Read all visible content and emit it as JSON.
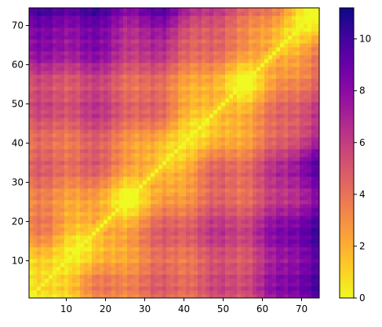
{
  "chart_data": {
    "type": "heatmap",
    "title": "",
    "xlabel": "",
    "ylabel": "",
    "n": 74,
    "x_range": [
      1,
      74
    ],
    "y_range": [
      1,
      74
    ],
    "x_ticks": [
      "10",
      "20",
      "30",
      "40",
      "50",
      "60",
      "70"
    ],
    "y_ticks": [
      "10",
      "20",
      "30",
      "40",
      "50",
      "60",
      "70"
    ],
    "colorbar": {
      "colormap": "plasma_r",
      "range": [
        0,
        11.2
      ],
      "ticks": [
        "0",
        "2",
        "4",
        "6",
        "8",
        "10"
      ]
    },
    "matrix_description_note": "",
    "symmetric": true,
    "diagonal_value": 0,
    "block_means": {
      "block_starts": [
        1,
        11,
        21,
        31,
        41,
        51,
        61,
        71
      ],
      "values": [
        [
          0.0,
          2.5,
          3.5,
          4.0,
          4.5,
          5.5,
          7.5,
          9.5
        ],
        [
          2.5,
          0.0,
          3.0,
          4.5,
          5.5,
          6.0,
          8.0,
          10.0
        ],
        [
          3.5,
          3.0,
          0.0,
          3.0,
          4.5,
          5.0,
          6.5,
          8.5
        ],
        [
          4.0,
          4.5,
          3.0,
          0.0,
          3.0,
          4.0,
          6.0,
          9.0
        ],
        [
          4.5,
          5.5,
          4.5,
          3.0,
          0.0,
          2.5,
          4.0,
          6.0
        ],
        [
          5.5,
          6.0,
          5.0,
          4.0,
          2.5,
          0.0,
          3.5,
          5.0
        ],
        [
          7.5,
          8.0,
          6.5,
          6.0,
          4.0,
          3.5,
          0.0,
          2.5
        ],
        [
          9.5,
          10.0,
          8.5,
          9.0,
          6.0,
          5.0,
          2.5,
          0.0
        ]
      ]
    }
  }
}
